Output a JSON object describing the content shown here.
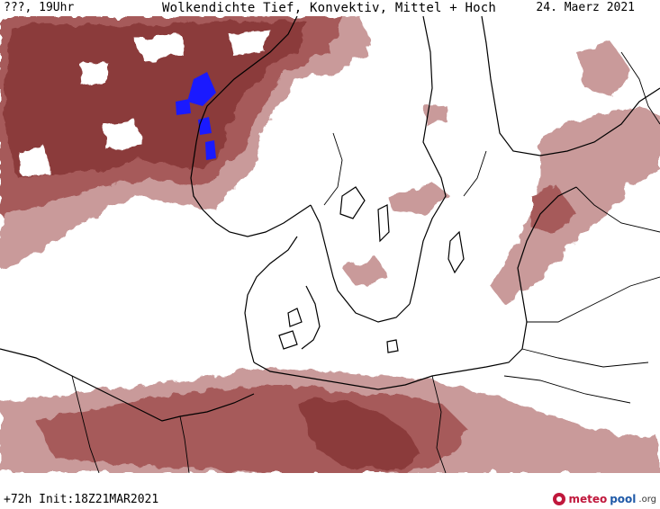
{
  "header": {
    "left": "???, 19Uhr",
    "title": "Wolkendichte  Tief, Konvektiv, Mittel + Hoch",
    "date": "24. Maerz 2021"
  },
  "footer": {
    "run_info": "+72h  Init:18Z21MAR2021"
  },
  "brand": {
    "name_part1": "meteo",
    "name_part2": "pool",
    "suffix": ".org",
    "icon": "meteopool-logo-icon"
  },
  "colors": {
    "cloud_dense": "#8b3a3a",
    "cloud_medium": "#a65a5a",
    "cloud_light": "#c99a9a",
    "precip": "#1a1aff",
    "coastline": "#000000",
    "background": "#ffffff"
  }
}
